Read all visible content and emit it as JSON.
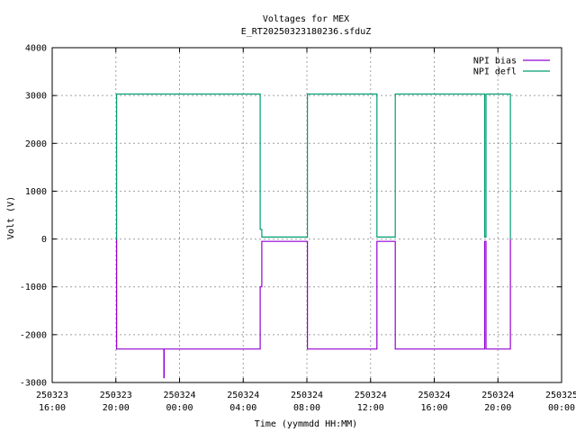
{
  "chart_data": {
    "type": "line",
    "title": "Voltages for MEX",
    "subtitle": "E_RT20250323180236.sfduZ",
    "xlabel": "Time (yymmdd HH:MM)",
    "ylabel": "Volt (V)",
    "xlim": [
      "250323 16:00",
      "250325 00:00"
    ],
    "ylim": [
      -3000,
      4000
    ],
    "x_ticks": [
      {
        "date": "250323",
        "time": "16:00"
      },
      {
        "date": "250323",
        "time": "20:00"
      },
      {
        "date": "250324",
        "time": "00:00"
      },
      {
        "date": "250324",
        "time": "04:00"
      },
      {
        "date": "250324",
        "time": "08:00"
      },
      {
        "date": "250324",
        "time": "12:00"
      },
      {
        "date": "250324",
        "time": "16:00"
      },
      {
        "date": "250324",
        "time": "20:00"
      },
      {
        "date": "250325",
        "time": "00:00"
      }
    ],
    "y_ticks": [
      "4000",
      "3000",
      "2000",
      "1000",
      "0",
      "-1000",
      "-2000",
      "-3000"
    ],
    "grid": true,
    "legend_position": "top-right",
    "series": [
      {
        "name": "NPI bias",
        "color": "#9400d3",
        "x": [
          "250323 20:00",
          "250323 20:03",
          "250323 23:00",
          "250323 23:01",
          "250323 23:02",
          "250324 05:00",
          "250324 05:04",
          "250324 05:10",
          "250324 08:00",
          "250324 08:02",
          "250324 12:20",
          "250324 12:24",
          "250324 13:30",
          "250324 13:33",
          "250324 19:00",
          "250324 19:10",
          "250324 19:12",
          "250324 19:15",
          "250324 20:45",
          "250324 20:47"
        ],
        "y": [
          0,
          -2300,
          -2300,
          -2900,
          -2300,
          -2300,
          -1000,
          -50,
          -50,
          -2300,
          -2300,
          -50,
          -50,
          -2300,
          -2300,
          -50,
          -50,
          -2300,
          -2300,
          0
        ]
      },
      {
        "name": "NPI defl",
        "color": "#009e73",
        "x": [
          "250323 20:00",
          "250323 20:03",
          "250324 05:00",
          "250324 05:04",
          "250324 05:10",
          "250324 08:00",
          "250324 08:02",
          "250324 12:20",
          "250324 12:24",
          "250324 13:30",
          "250324 13:33",
          "250324 19:00",
          "250324 19:10",
          "250324 19:12",
          "250324 19:15",
          "250324 20:45",
          "250324 20:47"
        ],
        "y": [
          0,
          3030,
          3030,
          200,
          40,
          40,
          3030,
          3030,
          40,
          40,
          3030,
          3030,
          40,
          40,
          3030,
          3030,
          0
        ]
      }
    ]
  }
}
